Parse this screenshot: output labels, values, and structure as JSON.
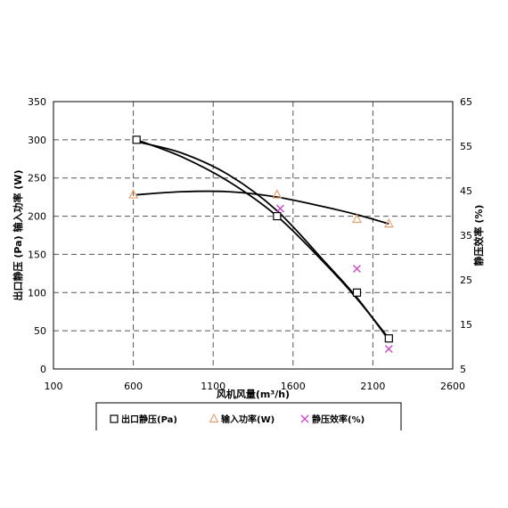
{
  "chart_data": {
    "type": "scatter",
    "xlabel": "风机风量(m³/h)",
    "ylabel_left": "出口静压 (Pa) 输入功率 (W)",
    "ylabel_right": "静压效率 (%)",
    "xlim": [
      100,
      2600
    ],
    "xticks": [
      100,
      600,
      1100,
      1600,
      2100,
      2600
    ],
    "ylim_left": [
      0,
      350
    ],
    "yticks_left": [
      0,
      50,
      100,
      150,
      200,
      250,
      300,
      350
    ],
    "ylim_right": [
      5,
      65
    ],
    "yticks_right": [
      5,
      15,
      25,
      35,
      45,
      55,
      65
    ],
    "grid": true,
    "legend_position": "bottom",
    "series": [
      {
        "name": "出口静压(Pa)",
        "axis": "left",
        "marker": "square",
        "color": "#000000",
        "x": [
          620,
          1500,
          2000,
          2200
        ],
        "y": [
          300,
          200,
          100,
          40
        ],
        "fit_x": [
          620,
          900,
          1200,
          1500,
          1800,
          2000,
          2200
        ],
        "fit_y": [
          300,
          278,
          245,
          200,
          138,
          92,
          40
        ]
      },
      {
        "name": "输入功率(W)",
        "axis": "left",
        "marker": "triangle",
        "color": "#e8a070",
        "x": [
          600,
          1500,
          2000,
          2200
        ],
        "y": [
          228,
          228,
          196,
          190
        ],
        "fit_x": [
          620,
          900,
          1200,
          1500,
          1800,
          2000,
          2200
        ],
        "fit_y": [
          228,
          232,
          232,
          225,
          212,
          202,
          190
        ]
      },
      {
        "name": "静压效率(%)",
        "axis": "right",
        "marker": "x",
        "color": "#cc44cc",
        "x": [
          1520,
          2000,
          2200
        ],
        "y": [
          41,
          27.5,
          9.5
        ],
        "fit_x": [
          620,
          900,
          1200,
          1500,
          1800,
          2000,
          2200
        ],
        "fit_y": [
          56,
          53.5,
          48.5,
          40.5,
          29,
          21,
          11.5
        ]
      }
    ]
  }
}
